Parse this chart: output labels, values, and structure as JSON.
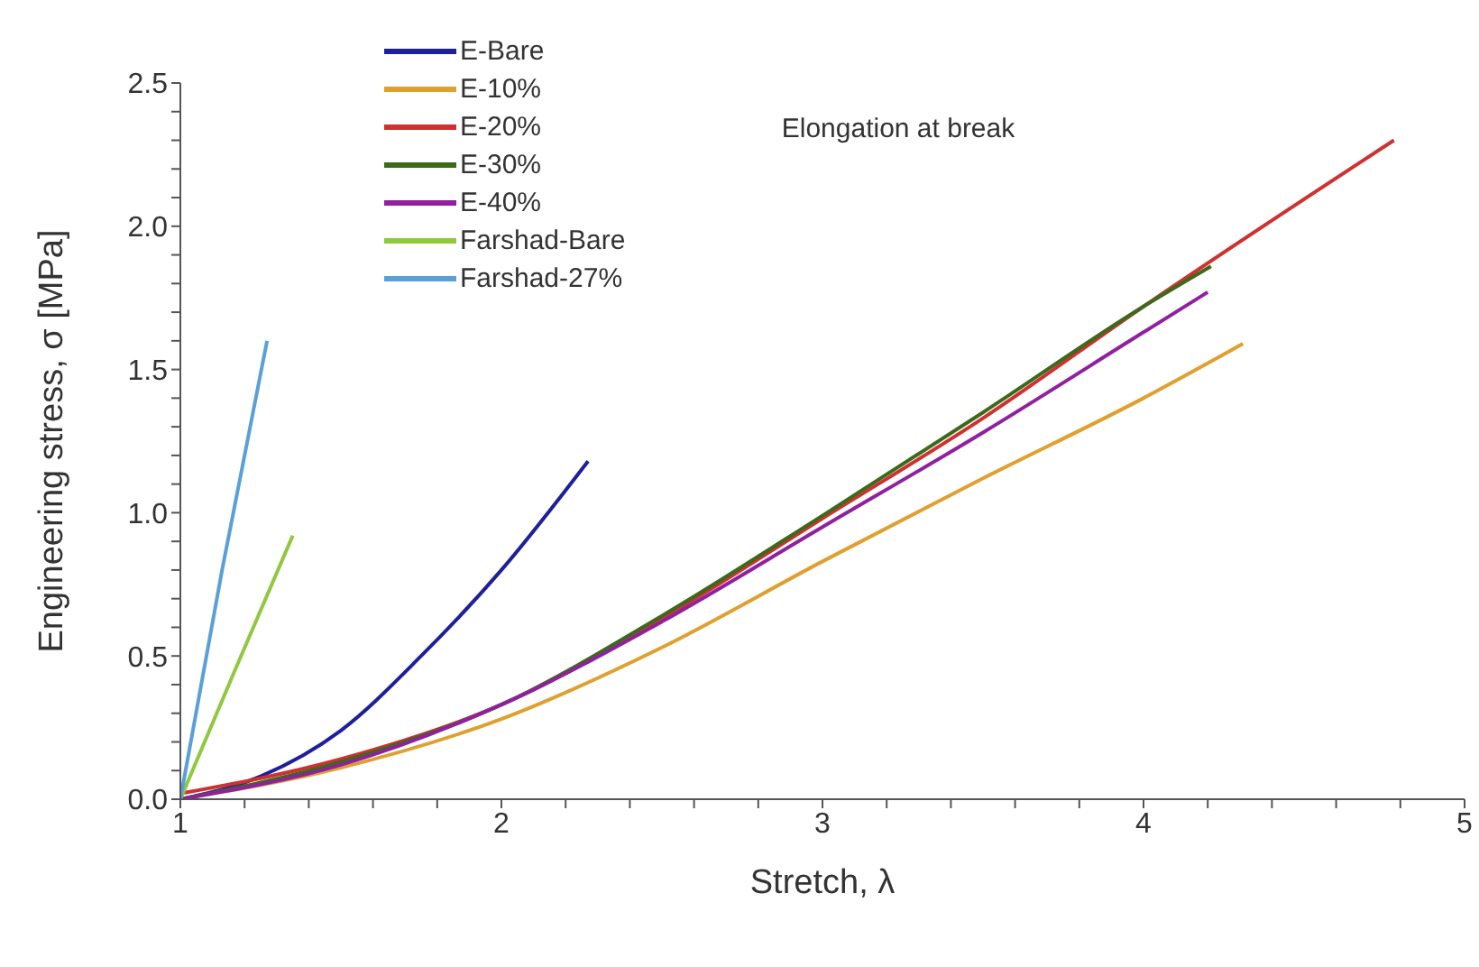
{
  "chart_data": {
    "type": "line",
    "xlabel": "Stretch, λ",
    "ylabel": "Engineering stress, σ [MPa]",
    "annotations": [
      "Elongation at break"
    ],
    "xlim": [
      1,
      5
    ],
    "ylim": [
      0,
      2.5
    ],
    "xticks": [
      1,
      {
        "value": 1.2,
        "label": null
      },
      {
        "value": 1.4,
        "label": null
      },
      {
        "value": 1.6,
        "label": null
      },
      {
        "value": 1.8,
        "label": null
      },
      2,
      {
        "value": 2.2,
        "label": null
      },
      {
        "value": 2.4,
        "label": null
      },
      {
        "value": 2.6,
        "label": null
      },
      {
        "value": 2.8,
        "label": null
      },
      3,
      {
        "value": 3.2,
        "label": null
      },
      {
        "value": 3.4,
        "label": null
      },
      {
        "value": 3.6,
        "label": null
      },
      {
        "value": 3.8,
        "label": null
      },
      4,
      {
        "value": 4.2,
        "label": null
      },
      {
        "value": 4.4,
        "label": null
      },
      {
        "value": 4.6,
        "label": null
      },
      {
        "value": 4.8,
        "label": null
      },
      5
    ],
    "yticks": [
      {
        "value": 0,
        "label": "0.0"
      },
      {
        "value": 0.1,
        "label": null
      },
      {
        "value": 0.2,
        "label": null
      },
      {
        "value": 0.3,
        "label": null
      },
      {
        "value": 0.4,
        "label": null
      },
      {
        "value": 0.5,
        "label": "0.5"
      },
      {
        "value": 0.6,
        "label": null
      },
      {
        "value": 0.7,
        "label": null
      },
      {
        "value": 0.8,
        "label": null
      },
      {
        "value": 0.9,
        "label": null
      },
      {
        "value": 1,
        "label": "1.0"
      },
      {
        "value": 1.1,
        "label": null
      },
      {
        "value": 1.2,
        "label": null
      },
      {
        "value": 1.3,
        "label": null
      },
      {
        "value": 1.4,
        "label": null
      },
      {
        "value": 1.5,
        "label": "1.5"
      },
      {
        "value": 1.6,
        "label": null
      },
      {
        "value": 1.7,
        "label": null
      },
      {
        "value": 1.8,
        "label": null
      },
      {
        "value": 1.9,
        "label": null
      },
      {
        "value": 2,
        "label": "2.0"
      },
      {
        "value": 2.1,
        "label": null
      },
      {
        "value": 2.2,
        "label": null
      },
      {
        "value": 2.3,
        "label": null
      },
      {
        "value": 2.4,
        "label": null
      },
      {
        "value": 2.5,
        "label": "2.5"
      }
    ],
    "grid": false,
    "legend": "top left",
    "marker": "none",
    "line_style": "solid",
    "series": [
      {
        "name": "E-Bare",
        "color": "#1f1f9a",
        "x": [
          1,
          1.25,
          1.5,
          1.75,
          2,
          2.27
        ],
        "values": [
          0,
          0.08,
          0.24,
          0.5,
          0.8,
          1.18
        ]
      },
      {
        "name": "E-10%",
        "color": "#e0a030",
        "x": [
          1,
          1.5,
          2,
          2.5,
          3,
          3.5,
          4,
          4.31
        ],
        "values": [
          0,
          0.11,
          0.28,
          0.53,
          0.83,
          1.12,
          1.4,
          1.59
        ]
      },
      {
        "name": "E-20%",
        "color": "#d03030",
        "x": [
          1,
          1.5,
          2,
          2.5,
          3,
          3.5,
          4,
          4.78
        ],
        "values": [
          0.02,
          0.14,
          0.33,
          0.63,
          0.98,
          1.33,
          1.72,
          2.3
        ]
      },
      {
        "name": "E-30%",
        "color": "#3a6a1a",
        "x": [
          1,
          1.5,
          2,
          2.5,
          3,
          3.5,
          4,
          4.21
        ],
        "values": [
          0,
          0.13,
          0.33,
          0.64,
          0.99,
          1.35,
          1.72,
          1.86
        ]
      },
      {
        "name": "E-40%",
        "color": "#9020a0",
        "x": [
          1,
          1.5,
          2,
          2.5,
          3,
          3.5,
          4,
          4.2
        ],
        "values": [
          0,
          0.12,
          0.33,
          0.62,
          0.95,
          1.28,
          1.63,
          1.77
        ]
      },
      {
        "name": "Farshad-Bare",
        "color": "#90c840",
        "x": [
          1,
          1.17,
          1.35
        ],
        "values": [
          0,
          0.45,
          0.92
        ]
      },
      {
        "name": "Farshad-27%",
        "color": "#5aa0d8",
        "x": [
          1,
          1.13,
          1.27
        ],
        "values": [
          0,
          0.8,
          1.6
        ]
      }
    ]
  }
}
